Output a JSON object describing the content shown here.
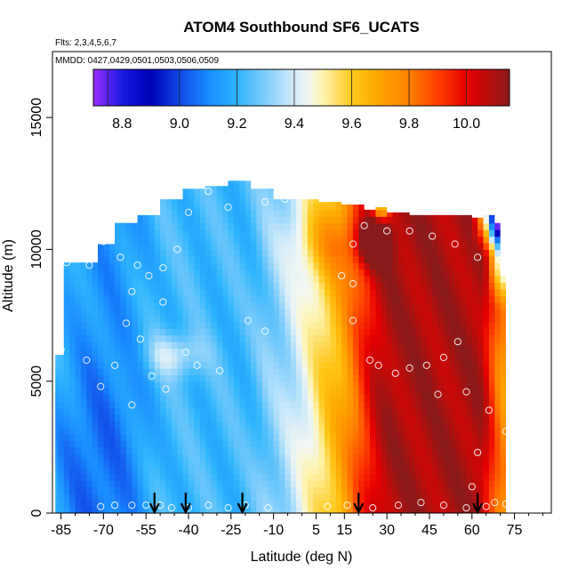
{
  "chart_data": {
    "type": "heatmap",
    "title": "ATOM4 Southbound SF6_UCATS",
    "subtitle_flights": "Flts: 2,3,4,5,6,7",
    "subtitle_dates": "MMDD: 0427,0429,0501,0503,0506,0509",
    "xlabel": "Latitude (deg N)",
    "ylabel": "Altitude (m)",
    "xlim": [
      -88,
      88
    ],
    "ylim": [
      0,
      17500
    ],
    "x_ticks": [
      -85,
      -70,
      -55,
      -40,
      -25,
      -10,
      5,
      15,
      30,
      45,
      60,
      75
    ],
    "x_minor_ticks": [
      -80,
      -75,
      -65,
      -60,
      -50,
      -45,
      -35,
      -30,
      -20,
      -15,
      -5,
      0,
      10,
      20,
      25,
      35,
      40,
      50,
      55,
      65,
      70,
      80,
      85
    ],
    "y_ticks": [
      0,
      5000,
      10000,
      15000
    ],
    "colorbar": {
      "min": 8.7,
      "max": 10.15,
      "tick_values": [
        8.8,
        9.0,
        9.2,
        9.4,
        9.6,
        9.8,
        10.0
      ],
      "tick_labels": [
        "8.8",
        "9.0",
        "9.2",
        "9.4",
        "9.6",
        "9.8",
        "10.0"
      ],
      "stops": [
        {
          "v": 8.7,
          "c": "#9a2eff"
        },
        {
          "v": 8.8,
          "c": "#1a1adf"
        },
        {
          "v": 8.9,
          "c": "#0000b8"
        },
        {
          "v": 9.0,
          "c": "#1048e8"
        },
        {
          "v": 9.1,
          "c": "#1a8cff"
        },
        {
          "v": 9.2,
          "c": "#2eb4ff"
        },
        {
          "v": 9.3,
          "c": "#7fcdfa"
        },
        {
          "v": 9.4,
          "c": "#d4ecfa"
        },
        {
          "v": 9.45,
          "c": "#f2f7f2"
        },
        {
          "v": 9.5,
          "c": "#fff4b0"
        },
        {
          "v": 9.6,
          "c": "#ffc81a"
        },
        {
          "v": 9.7,
          "c": "#ffa500"
        },
        {
          "v": 9.8,
          "c": "#ff8000"
        },
        {
          "v": 9.9,
          "c": "#ff4000"
        },
        {
          "v": 10.0,
          "c": "#e80000"
        },
        {
          "v": 10.15,
          "c": "#8a1a1a"
        }
      ]
    },
    "arrows_latitude": [
      -52,
      -41,
      -21,
      20,
      62
    ],
    "field_bounds": {
      "profile_lat": [
        -87,
        -84,
        -78,
        -72,
        -66,
        -58,
        -50,
        -42,
        -34,
        -26,
        -18,
        -10,
        -2,
        6,
        14,
        22,
        26,
        30,
        38,
        46,
        54,
        60,
        64,
        68,
        70,
        72
      ],
      "profile_top": [
        6000,
        9500,
        9500,
        10200,
        11000,
        11300,
        11900,
        12300,
        12400,
        12600,
        12300,
        11900,
        11900,
        11800,
        11700,
        11500,
        11600,
        11400,
        11300,
        11300,
        11300,
        11200,
        11300,
        11000,
        9000,
        6400
      ]
    },
    "scatter_points": [
      [
        -83,
        9500
      ],
      [
        -75,
        9400
      ],
      [
        -70,
        10300
      ],
      [
        -64,
        9700
      ],
      [
        -58,
        9400
      ],
      [
        -54,
        9000
      ],
      [
        -49,
        9300
      ],
      [
        -44,
        10000
      ],
      [
        -40,
        11400
      ],
      [
        -33,
        12200
      ],
      [
        -26,
        11600
      ],
      [
        -13,
        11800
      ],
      [
        -6,
        11900
      ],
      [
        -60,
        8400
      ],
      [
        -62,
        7200
      ],
      [
        -57,
        6600
      ],
      [
        -49,
        8000
      ],
      [
        -41,
        6100
      ],
      [
        -37,
        5600
      ],
      [
        -29,
        5400
      ],
      [
        -19,
        7300
      ],
      [
        -13,
        6900
      ],
      [
        -53,
        5200
      ],
      [
        -48,
        4700
      ],
      [
        -60,
        4100
      ],
      [
        -66,
        5600
      ],
      [
        -71,
        4800
      ],
      [
        -76,
        5800
      ],
      [
        -85,
        6200
      ],
      [
        -55,
        300
      ],
      [
        -50,
        300
      ],
      [
        -46,
        200
      ],
      [
        -40,
        200
      ],
      [
        -33,
        300
      ],
      [
        -26,
        200
      ],
      [
        -20,
        300
      ],
      [
        -12,
        200
      ],
      [
        -60,
        300
      ],
      [
        -66,
        300
      ],
      [
        -71,
        250
      ],
      [
        14,
        9000
      ],
      [
        18,
        8700
      ],
      [
        18,
        7300
      ],
      [
        24,
        5800
      ],
      [
        27,
        5600
      ],
      [
        33,
        5300
      ],
      [
        38,
        5500
      ],
      [
        44,
        5600
      ],
      [
        50,
        5900
      ],
      [
        55,
        6500
      ],
      [
        48,
        4500
      ],
      [
        58,
        4600
      ],
      [
        66,
        3900
      ],
      [
        72,
        3100
      ],
      [
        62,
        2300
      ],
      [
        60,
        1000
      ],
      [
        68,
        400
      ],
      [
        22,
        10900
      ],
      [
        30,
        10700
      ],
      [
        38,
        10700
      ],
      [
        46,
        10500
      ],
      [
        54,
        10200
      ],
      [
        62,
        9700
      ],
      [
        70,
        9600
      ],
      [
        18,
        10200
      ],
      [
        16,
        300
      ],
      [
        25,
        200
      ],
      [
        34,
        300
      ],
      [
        42,
        400
      ],
      [
        50,
        300
      ],
      [
        58,
        200
      ],
      [
        65,
        250
      ],
      [
        72,
        350
      ],
      [
        9,
        250
      ]
    ]
  }
}
